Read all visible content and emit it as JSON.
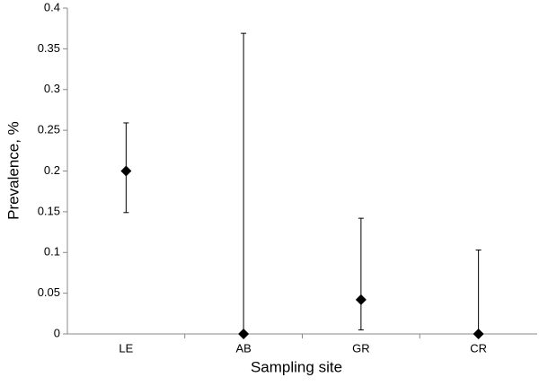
{
  "chart_data": {
    "type": "errorbar",
    "x_label": "Sampling site",
    "y_label": "Prevalence, %",
    "categories": [
      "LE",
      "AB",
      "GR",
      "CR"
    ],
    "values": [
      0.2,
      0,
      0.042,
      0
    ],
    "lower": [
      0.149,
      0,
      0.005,
      0
    ],
    "upper": [
      0.259,
      0.369,
      0.142,
      0.103
    ],
    "color": "#000000",
    "ylim": [
      0,
      0.4
    ],
    "yticks": [
      0,
      0.05,
      0.1,
      0.15,
      0.2,
      0.25,
      0.3,
      0.35,
      0.4
    ],
    "grid": false
  }
}
